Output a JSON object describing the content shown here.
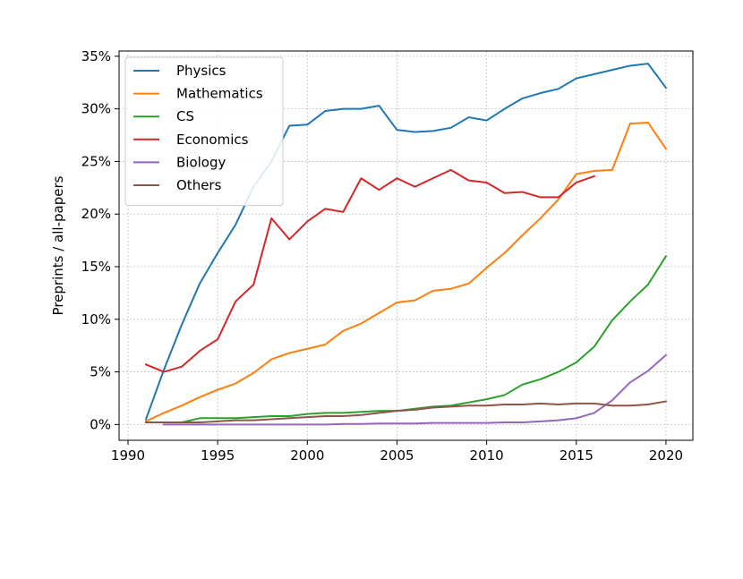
{
  "chart_data": {
    "type": "line",
    "title": "",
    "xlabel": "",
    "ylabel": "Preprints / all-papers",
    "xlim": [
      1989.5,
      2021.5
    ],
    "ylim": [
      -1.5,
      35.5
    ],
    "xticks": [
      1990,
      1995,
      2000,
      2005,
      2010,
      2015,
      2020
    ],
    "xtick_labels": [
      "1990",
      "1995",
      "2000",
      "2005",
      "2010",
      "2015",
      "2020"
    ],
    "yticks": [
      0,
      5,
      10,
      15,
      20,
      25,
      30,
      35
    ],
    "ytick_labels": [
      "0%",
      "5%",
      "10%",
      "15%",
      "20%",
      "25%",
      "30%",
      "35%"
    ],
    "grid": true,
    "legend_position": "top-left",
    "series": [
      {
        "name": "Physics",
        "color": "#1f77b4",
        "x": [
          1991,
          1992,
          1993,
          1994,
          1995,
          1996,
          1997,
          1998,
          1999,
          2000,
          2001,
          2002,
          2003,
          2004,
          2005,
          2006,
          2007,
          2008,
          2009,
          2010,
          2011,
          2012,
          2013,
          2014,
          2015,
          2016,
          2017,
          2018,
          2019,
          2020
        ],
        "y": [
          0.5,
          5.2,
          9.5,
          13.4,
          16.3,
          19.0,
          22.6,
          25.0,
          28.4,
          28.5,
          29.8,
          30.0,
          30.0,
          30.3,
          28.0,
          27.8,
          27.9,
          28.2,
          29.2,
          28.9,
          30.0,
          31.0,
          31.5,
          31.9,
          32.9,
          33.3,
          33.7,
          34.1,
          34.3,
          32.0
        ]
      },
      {
        "name": "Mathematics",
        "color": "#ff7f0e",
        "x": [
          1991,
          1992,
          1993,
          1994,
          1995,
          1996,
          1997,
          1998,
          1999,
          2000,
          2001,
          2002,
          2003,
          2004,
          2005,
          2006,
          2007,
          2008,
          2009,
          2010,
          2011,
          2012,
          2013,
          2014,
          2015,
          2016,
          2017,
          2018,
          2019,
          2020
        ],
        "y": [
          0.3,
          1.1,
          1.8,
          2.6,
          3.3,
          3.9,
          4.9,
          6.2,
          6.8,
          7.2,
          7.6,
          8.9,
          9.6,
          10.6,
          11.6,
          11.8,
          12.7,
          12.9,
          13.4,
          14.9,
          16.3,
          18.0,
          19.6,
          21.4,
          23.8,
          24.1,
          24.2,
          28.6,
          28.7,
          26.2
        ]
      },
      {
        "name": "CS",
        "color": "#2ca02c",
        "x": [
          1991,
          1992,
          1993,
          1994,
          1995,
          1996,
          1997,
          1998,
          1999,
          2000,
          2001,
          2002,
          2003,
          2004,
          2005,
          2006,
          2007,
          2008,
          2009,
          2010,
          2011,
          2012,
          2013,
          2014,
          2015,
          2016,
          2017,
          2018,
          2019,
          2020
        ],
        "y": [
          0.2,
          0.2,
          0.2,
          0.6,
          0.6,
          0.6,
          0.7,
          0.8,
          0.8,
          1.0,
          1.1,
          1.1,
          1.2,
          1.3,
          1.3,
          1.5,
          1.7,
          1.8,
          2.1,
          2.4,
          2.8,
          3.8,
          4.3,
          5.0,
          5.9,
          7.4,
          9.9,
          11.7,
          13.3,
          16.0
        ]
      },
      {
        "name": "Economics",
        "color": "#d62728",
        "x": [
          1991,
          1992,
          1993,
          1994,
          1995,
          1996,
          1997,
          1998,
          1999,
          2000,
          2001,
          2002,
          2003,
          2004,
          2005,
          2006,
          2007,
          2008,
          2009,
          2010,
          2011,
          2012,
          2013,
          2014,
          2015,
          2016
        ],
        "y": [
          5.7,
          5.0,
          5.5,
          7.0,
          8.1,
          11.7,
          13.3,
          19.6,
          17.6,
          19.3,
          20.5,
          20.2,
          23.4,
          22.3,
          23.4,
          22.6,
          23.4,
          24.2,
          23.2,
          23.0,
          22.0,
          22.1,
          21.6,
          21.6,
          23.0,
          23.6
        ]
      },
      {
        "name": "Biology",
        "color": "#9467bd",
        "x": [
          1992,
          1993,
          1994,
          1995,
          1996,
          1997,
          1998,
          1999,
          2000,
          2001,
          2002,
          2003,
          2004,
          2005,
          2006,
          2007,
          2008,
          2009,
          2010,
          2011,
          2012,
          2013,
          2014,
          2015,
          2016,
          2017,
          2018,
          2019,
          2020
        ],
        "y": [
          0.0,
          0.0,
          0.0,
          0.0,
          0.0,
          0.0,
          0.0,
          0.0,
          0.0,
          0.0,
          0.05,
          0.05,
          0.1,
          0.1,
          0.1,
          0.15,
          0.15,
          0.15,
          0.15,
          0.2,
          0.2,
          0.3,
          0.4,
          0.6,
          1.1,
          2.3,
          4.0,
          5.1,
          6.6
        ]
      },
      {
        "name": "Others",
        "color": "#8c564b",
        "x": [
          1991,
          1992,
          1993,
          1994,
          1995,
          1996,
          1997,
          1998,
          1999,
          2000,
          2001,
          2002,
          2003,
          2004,
          2005,
          2006,
          2007,
          2008,
          2009,
          2010,
          2011,
          2012,
          2013,
          2014,
          2015,
          2016,
          2017,
          2018,
          2019,
          2020
        ],
        "y": [
          0.2,
          0.2,
          0.2,
          0.2,
          0.3,
          0.4,
          0.4,
          0.5,
          0.6,
          0.7,
          0.8,
          0.8,
          0.9,
          1.1,
          1.3,
          1.4,
          1.6,
          1.7,
          1.8,
          1.8,
          1.9,
          1.9,
          2.0,
          1.9,
          2.0,
          2.0,
          1.8,
          1.8,
          1.9,
          2.2
        ]
      }
    ]
  }
}
